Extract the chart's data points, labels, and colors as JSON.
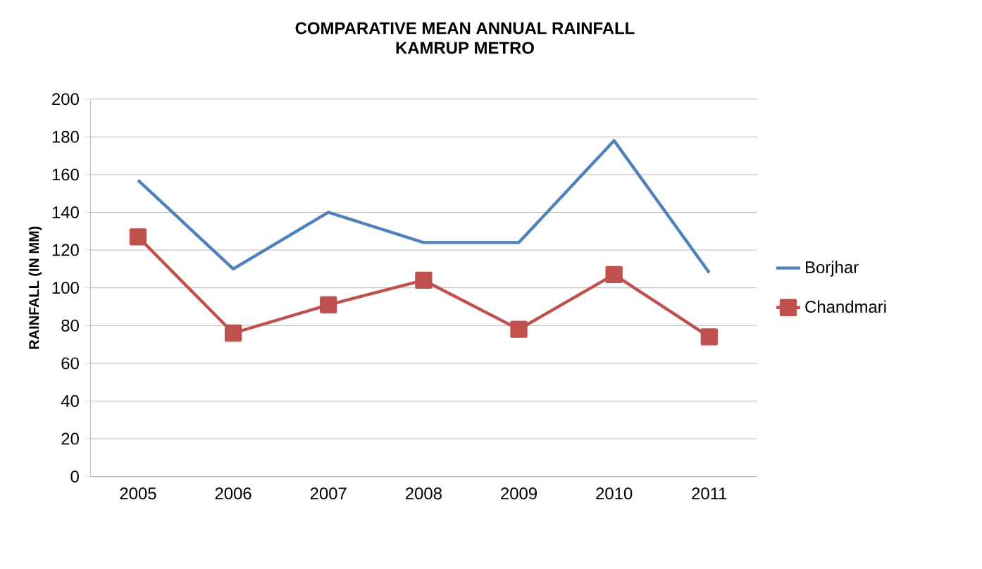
{
  "chart_data": {
    "type": "line",
    "title": "COMPARATIVE MEAN ANNUAL RAINFALL",
    "subtitle": "KAMRUP METRO",
    "ylabel": "RAINFALL (IN MM)",
    "categories": [
      "2005",
      "2006",
      "2007",
      "2008",
      "2009",
      "2010",
      "2011"
    ],
    "series": [
      {
        "name": "Borjhar",
        "color": "#4f81bd",
        "marker": "none",
        "values": [
          157,
          110,
          140,
          124,
          124,
          178,
          108
        ]
      },
      {
        "name": "Chandmari",
        "color": "#c0504d",
        "marker": "square",
        "values": [
          127,
          76,
          91,
          104,
          78,
          107,
          74
        ]
      }
    ],
    "ylim": [
      0,
      200
    ],
    "yticks": [
      0,
      20,
      40,
      60,
      80,
      100,
      120,
      140,
      160,
      180,
      200
    ],
    "grid": "y",
    "legend": "right",
    "line_style": "solid"
  }
}
